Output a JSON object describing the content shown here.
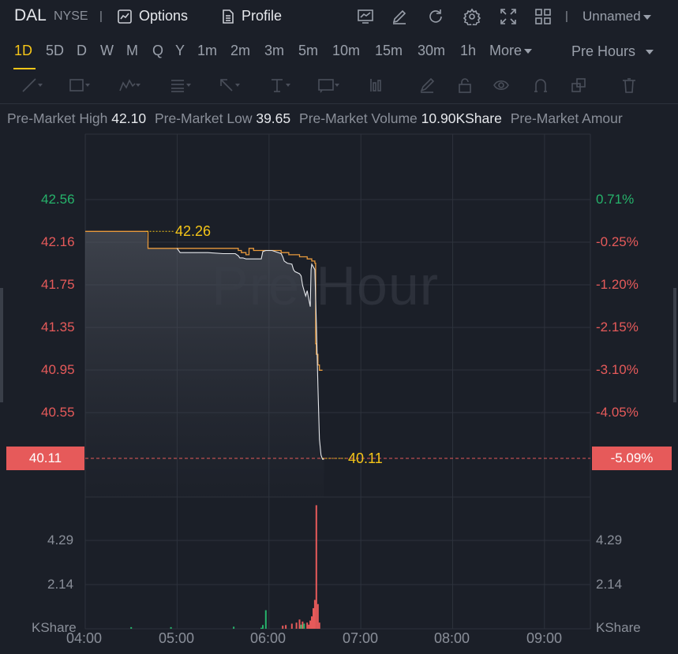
{
  "header": {
    "symbol": "DAL",
    "exchange": "NYSE",
    "options_label": "Options",
    "profile_label": "Profile",
    "layout_name": "Unnamed",
    "icons": [
      "chart-icon",
      "edit-icon",
      "refresh-icon",
      "settings-icon",
      "fullscreen-icon",
      "grid-icon"
    ]
  },
  "timeframes": [
    "1D",
    "5D",
    "D",
    "W",
    "M",
    "Q",
    "Y",
    "1m",
    "2m",
    "3m",
    "5m",
    "10m",
    "15m",
    "30m",
    "1h"
  ],
  "timeframe_active": "1D",
  "more_label": "More",
  "session_label": "Pre Hours",
  "drawing_tools": [
    "line-tool-icon",
    "rectangle-tool-icon",
    "pattern-tool-icon",
    "fib-tool-icon",
    "arrow-tool-icon",
    "text-tool-icon",
    "note-tool-icon",
    "measure-tool-icon",
    "brush-icon",
    "lock-icon",
    "eye-icon",
    "magnet-icon",
    "layers-icon",
    "trash-icon"
  ],
  "stats": {
    "high_label": "Pre-Market High",
    "high_value": "42.10",
    "low_label": "Pre-Market Low",
    "low_value": "39.65",
    "volume_label": "Pre-Market Volume",
    "volume_value": "10.90KShare",
    "amount_label": "Pre-Market Amour"
  },
  "watermark": "Pre Hour",
  "colors": {
    "up": "#26b36b",
    "down": "#e65a5a",
    "accent": "#f5c518",
    "price_line": "#e89a3c",
    "avg_line": "#e6e8ec"
  },
  "chart_data": {
    "type": "line",
    "x_ticks": [
      "04:00",
      "05:00",
      "06:00",
      "07:00",
      "08:00",
      "09:00"
    ],
    "price_axis_left": [
      "42.56",
      "42.16",
      "41.75",
      "41.35",
      "40.95",
      "40.55"
    ],
    "price_axis_right": [
      "0.71%",
      "-0.25%",
      "-1.20%",
      "-2.15%",
      "-3.10%",
      "-4.05%"
    ],
    "current_price": "40.11",
    "current_change": "-5.09%",
    "prev_close_mark": "42.26",
    "last_mark": "40.11",
    "volume_axis_left": [
      "4.29",
      "2.14"
    ],
    "volume_axis_right": [
      "4.29",
      "2.14"
    ],
    "volume_unit": "KShare",
    "price_series": {
      "x_minutes": [
        0,
        40,
        41,
        60,
        80,
        95,
        98,
        100,
        101,
        102,
        103,
        105,
        107,
        108,
        110,
        120,
        128,
        133,
        140,
        145,
        148,
        150,
        150.5,
        151,
        152,
        153,
        154,
        155
      ],
      "values": [
        42.26,
        42.26,
        42.1,
        42.1,
        42.1,
        42.1,
        42.1,
        42.08,
        42.08,
        42.06,
        42.06,
        42.04,
        42.1,
        42.1,
        42.08,
        42.08,
        42.06,
        42.04,
        42.02,
        42.0,
        41.98,
        41.96,
        41.2,
        41.1,
        41.0,
        40.95,
        40.95,
        40.95
      ]
    },
    "avg_series": {
      "x_minutes": [
        60,
        62,
        70,
        80,
        90,
        95,
        98,
        100,
        101,
        103,
        105,
        115,
        116,
        118,
        120,
        122,
        128,
        129,
        130,
        132,
        135,
        136,
        137,
        140,
        141,
        142,
        143,
        144,
        145,
        146,
        147,
        147.5,
        148,
        150,
        151,
        152,
        153,
        154,
        155,
        156
      ],
      "values": [
        42.1,
        42.06,
        42.06,
        42.06,
        42.05,
        42.05,
        42.05,
        42.03,
        42.01,
        42.01,
        42.0,
        42.0,
        42.07,
        42.08,
        42.08,
        42.08,
        42.05,
        42.02,
        41.98,
        41.96,
        41.95,
        41.9,
        41.88,
        41.86,
        41.84,
        41.75,
        41.7,
        41.65,
        41.7,
        41.62,
        41.55,
        41.9,
        41.95,
        41.9,
        41.4,
        40.8,
        40.3,
        40.15,
        40.11,
        40.11
      ]
    },
    "volume_series": {
      "x_minutes": [
        30,
        56,
        97,
        115,
        116,
        118,
        129,
        131,
        135,
        138,
        140,
        141,
        142,
        143,
        145,
        146,
        147,
        148,
        149,
        150,
        151,
        152,
        153
      ],
      "values": [
        0.08,
        0.08,
        0.1,
        0.05,
        0.18,
        0.9,
        0.15,
        0.18,
        0.25,
        0.3,
        0.45,
        0.2,
        0.35,
        0.25,
        0.3,
        0.2,
        0.4,
        0.6,
        1.0,
        1.4,
        6.0,
        1.2,
        0.3
      ],
      "up": [
        true,
        true,
        true,
        true,
        true,
        true,
        false,
        false,
        false,
        false,
        false,
        true,
        false,
        true,
        false,
        false,
        false,
        false,
        false,
        false,
        false,
        false,
        false
      ]
    }
  }
}
